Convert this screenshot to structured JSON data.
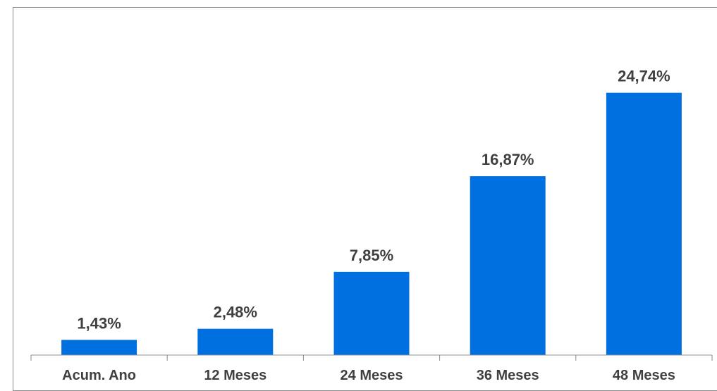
{
  "chart_data": {
    "type": "bar",
    "title": "",
    "xlabel": "",
    "ylabel": "",
    "categories": [
      "Acum. Ano",
      "12 Meses",
      "24 Meses",
      "36 Meses",
      "48 Meses"
    ],
    "values": [
      1.43,
      2.48,
      7.85,
      16.87,
      24.74
    ],
    "data_labels": [
      "1,43%",
      "2,48%",
      "7,85%",
      "16,87%",
      "24,74%"
    ],
    "ylim": [
      0,
      28
    ],
    "grid": false,
    "legend": "none",
    "bar_color": "#0070E0",
    "label_color": "#404040",
    "axis_color": "#8C8C8C"
  }
}
